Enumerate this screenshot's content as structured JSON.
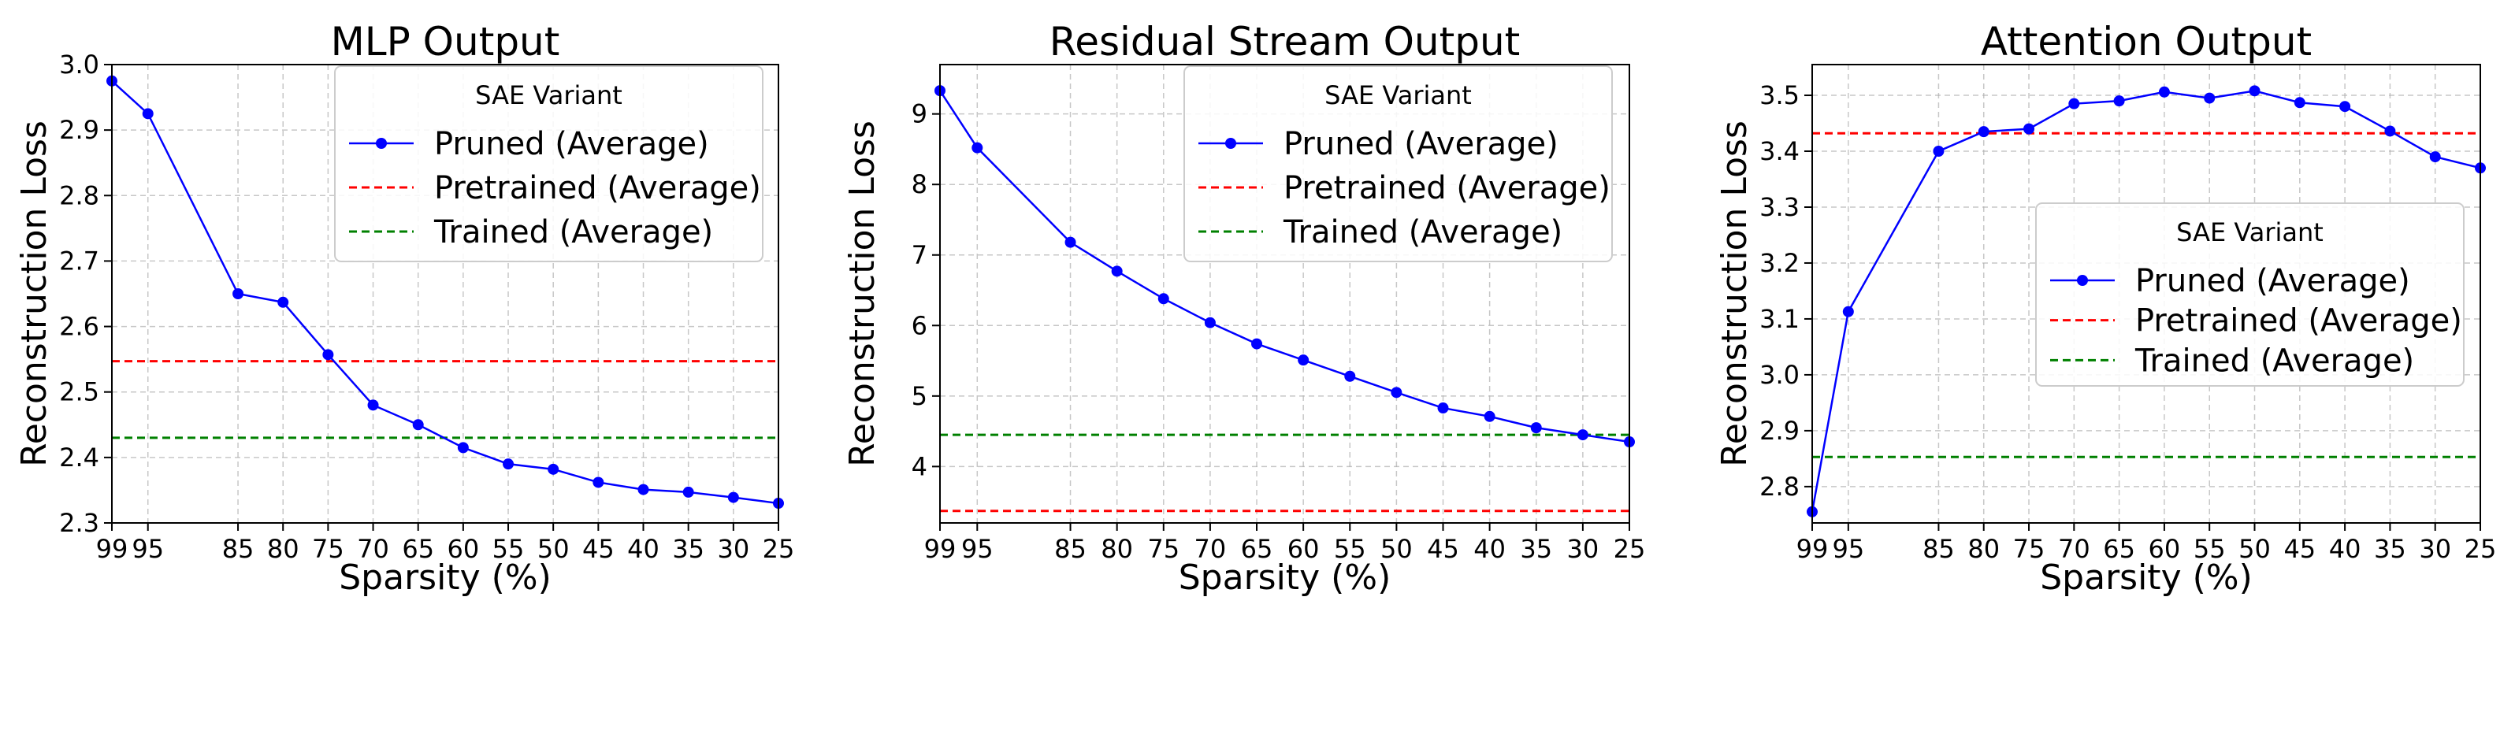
{
  "chart_data": [
    {
      "type": "line",
      "title": "MLP Output",
      "xlabel": "Sparsity (%)",
      "ylabel": "Reconstruction Loss",
      "x": [
        99,
        95,
        85,
        80,
        75,
        70,
        65,
        60,
        55,
        50,
        45,
        40,
        35,
        30,
        25
      ],
      "x_tick_labels": [
        "99",
        "95",
        "85",
        "80",
        "75",
        "70",
        "65",
        "60",
        "55",
        "50",
        "45",
        "40",
        "35",
        "30",
        "25"
      ],
      "xlim": [
        99,
        25
      ],
      "x_reversed": true,
      "ylim": [
        2.3,
        3.0
      ],
      "y_ticks": [
        2.3,
        2.4,
        2.5,
        2.6,
        2.7,
        2.8,
        2.9,
        3.0
      ],
      "y_tick_labels": [
        "2.3",
        "2.4",
        "2.5",
        "2.6",
        "2.7",
        "2.8",
        "2.9",
        "3.0"
      ],
      "grid": true,
      "legend_placement": "top-right",
      "series": [
        {
          "name": "Pruned (Average)",
          "kind": "line-marker",
          "color": "#0000ff",
          "values": [
            2.975,
            2.925,
            2.65,
            2.637,
            2.557,
            2.48,
            2.45,
            2.415,
            2.39,
            2.382,
            2.362,
            2.351,
            2.347,
            2.339,
            2.33
          ]
        },
        {
          "name": "Pretrained (Average)",
          "kind": "hline",
          "color": "#ff0000",
          "value": 2.547
        },
        {
          "name": "Trained (Average)",
          "kind": "hline",
          "color": "#008000",
          "value": 2.43
        }
      ]
    },
    {
      "type": "line",
      "title": "Residual Stream Output",
      "xlabel": "Sparsity (%)",
      "ylabel": "Reconstruction Loss",
      "x": [
        99,
        95,
        85,
        80,
        75,
        70,
        65,
        60,
        55,
        50,
        45,
        40,
        35,
        30,
        25
      ],
      "x_tick_labels": [
        "99",
        "95",
        "85",
        "80",
        "75",
        "70",
        "65",
        "60",
        "55",
        "50",
        "45",
        "40",
        "35",
        "30",
        "25"
      ],
      "xlim": [
        99,
        25
      ],
      "x_reversed": true,
      "ylim": [
        3.2,
        9.7
      ],
      "y_ticks": [
        4,
        5,
        6,
        7,
        8,
        9
      ],
      "y_tick_labels": [
        "4",
        "5",
        "6",
        "7",
        "8",
        "9"
      ],
      "grid": true,
      "legend_placement": "top-right",
      "series": [
        {
          "name": "Pruned (Average)",
          "kind": "line-marker",
          "color": "#0000ff",
          "values": [
            9.33,
            8.52,
            7.18,
            6.77,
            6.38,
            6.04,
            5.74,
            5.51,
            5.28,
            5.05,
            4.83,
            4.71,
            4.55,
            4.45,
            4.35
          ]
        },
        {
          "name": "Pretrained (Average)",
          "kind": "hline",
          "color": "#ff0000",
          "value": 3.37
        },
        {
          "name": "Trained (Average)",
          "kind": "hline",
          "color": "#008000",
          "value": 4.45
        }
      ]
    },
    {
      "type": "line",
      "title": "Attention Output",
      "xlabel": "Sparsity (%)",
      "ylabel": "Reconstruction Loss",
      "x": [
        99,
        95,
        85,
        80,
        75,
        70,
        65,
        60,
        55,
        50,
        45,
        40,
        35,
        30,
        25
      ],
      "x_tick_labels": [
        "99",
        "95",
        "85",
        "80",
        "75",
        "70",
        "65",
        "60",
        "55",
        "50",
        "45",
        "40",
        "35",
        "30",
        "25"
      ],
      "xlim": [
        99,
        25
      ],
      "x_reversed": true,
      "ylim": [
        2.735,
        3.555
      ],
      "y_ticks": [
        2.8,
        2.9,
        3.0,
        3.1,
        3.2,
        3.3,
        3.4,
        3.5
      ],
      "y_tick_labels": [
        "2.8",
        "2.9",
        "3.0",
        "3.1",
        "3.2",
        "3.3",
        "3.4",
        "3.5"
      ],
      "grid": true,
      "legend_placement": "center-right",
      "series": [
        {
          "name": "Pruned (Average)",
          "kind": "line-marker",
          "color": "#0000ff",
          "values": [
            2.755,
            3.113,
            3.4,
            3.435,
            3.44,
            3.485,
            3.49,
            3.506,
            3.495,
            3.508,
            3.487,
            3.48,
            3.436,
            3.39,
            3.37
          ]
        },
        {
          "name": "Pretrained (Average)",
          "kind": "hline",
          "color": "#ff0000",
          "value": 3.432
        },
        {
          "name": "Trained (Average)",
          "kind": "hline",
          "color": "#008000",
          "value": 2.853
        }
      ]
    }
  ],
  "legend_title": "SAE Variant"
}
